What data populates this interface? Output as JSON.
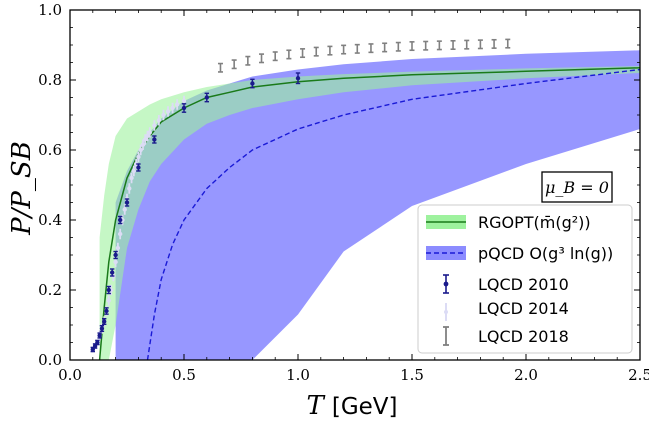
{
  "chart_data": {
    "type": "line",
    "xlabel_var": "T",
    "xlabel_unit": "[GeV]",
    "ylabel": "P/P_SB",
    "xlim": [
      0.0,
      2.5
    ],
    "ylim": [
      0.0,
      1.0
    ],
    "xticks": [
      0.0,
      0.5,
      1.0,
      1.5,
      2.0,
      2.5
    ],
    "xtick_labels": [
      "0.0",
      "0.5",
      "1.0",
      "1.5",
      "2.0",
      "2.5"
    ],
    "yticks": [
      0.0,
      0.2,
      0.4,
      0.6,
      0.8,
      1.0
    ],
    "ytick_labels": [
      "0.0",
      "0.2",
      "0.4",
      "0.6",
      "0.8",
      "1.0"
    ],
    "grid": false,
    "legend_position": "lower-right",
    "annotation": "μ_B = 0",
    "colors": {
      "rgopt_band": "#9ef29e",
      "rgopt_line": "#1a7a1a",
      "pqcd_band": "#8c8cff",
      "pqcd_line": "#1a1ad6",
      "lqcd2010": "#1a1a8c",
      "lqcd2014": "#dcdcf5",
      "lqcd2018": "#808080"
    },
    "series": [
      {
        "name": "RGOPT(m̄(g²))",
        "kind": "line_band",
        "x": [
          0.13,
          0.15,
          0.17,
          0.2,
          0.25,
          0.3,
          0.35,
          0.4,
          0.5,
          0.6,
          0.7,
          0.8,
          1.0,
          1.2,
          1.5,
          2.0,
          2.5
        ],
        "y": [
          0.0,
          0.15,
          0.28,
          0.4,
          0.52,
          0.59,
          0.64,
          0.68,
          0.72,
          0.75,
          0.765,
          0.78,
          0.795,
          0.805,
          0.815,
          0.825,
          0.835
        ],
        "band_upper": [
          0.35,
          0.47,
          0.56,
          0.64,
          0.69,
          0.71,
          0.73,
          0.745,
          0.765,
          0.78,
          0.79,
          0.8,
          0.81,
          0.817,
          0.824,
          0.833,
          0.84
        ],
        "band_lower": [
          0.0,
          0.0,
          0.0,
          0.1,
          0.32,
          0.43,
          0.51,
          0.56,
          0.63,
          0.675,
          0.7,
          0.72,
          0.745,
          0.765,
          0.785,
          0.805,
          0.82
        ]
      },
      {
        "name": "pQCD O(g³ ln(g))",
        "kind": "line_band",
        "x": [
          0.34,
          0.37,
          0.4,
          0.45,
          0.5,
          0.6,
          0.7,
          0.8,
          1.0,
          1.2,
          1.5,
          2.0,
          2.5
        ],
        "y": [
          0.0,
          0.13,
          0.23,
          0.33,
          0.4,
          0.49,
          0.55,
          0.6,
          0.66,
          0.7,
          0.745,
          0.79,
          0.83
        ],
        "band_x": [
          0.2,
          0.25,
          0.3,
          0.35,
          0.4,
          0.5,
          0.6,
          0.7,
          0.8,
          1.0,
          1.2,
          1.5,
          2.0,
          2.5
        ],
        "band_upper": [
          0.45,
          0.54,
          0.6,
          0.65,
          0.69,
          0.74,
          0.77,
          0.79,
          0.81,
          0.83,
          0.845,
          0.86,
          0.875,
          0.885
        ],
        "band_lower": [
          0.0,
          0.0,
          0.0,
          0.0,
          0.0,
          0.0,
          0.0,
          0.0,
          0.0,
          0.13,
          0.31,
          0.44,
          0.56,
          0.66
        ]
      },
      {
        "name": "LQCD 2010",
        "kind": "errorbar",
        "x": [
          0.1,
          0.11,
          0.12,
          0.13,
          0.14,
          0.15,
          0.16,
          0.17,
          0.185,
          0.2,
          0.22,
          0.25,
          0.3,
          0.37,
          0.5,
          0.6,
          0.8,
          1.0
        ],
        "y": [
          0.03,
          0.04,
          0.05,
          0.07,
          0.09,
          0.11,
          0.14,
          0.2,
          0.25,
          0.3,
          0.4,
          0.45,
          0.55,
          0.63,
          0.72,
          0.75,
          0.79,
          0.805
        ],
        "err": [
          0.006,
          0.006,
          0.006,
          0.007,
          0.008,
          0.008,
          0.009,
          0.01,
          0.01,
          0.01,
          0.01,
          0.01,
          0.01,
          0.01,
          0.012,
          0.012,
          0.012,
          0.015
        ]
      },
      {
        "name": "LQCD 2014",
        "kind": "errorbar",
        "x": [
          0.13,
          0.14,
          0.15,
          0.16,
          0.17,
          0.18,
          0.19,
          0.2,
          0.21,
          0.22,
          0.23,
          0.24,
          0.25,
          0.26,
          0.27,
          0.28,
          0.29,
          0.3,
          0.31,
          0.32,
          0.33,
          0.34,
          0.35,
          0.37,
          0.39,
          0.41,
          0.43,
          0.45,
          0.47,
          0.5
        ],
        "y": [
          0.07,
          0.09,
          0.11,
          0.14,
          0.17,
          0.2,
          0.24,
          0.28,
          0.32,
          0.36,
          0.4,
          0.43,
          0.46,
          0.49,
          0.52,
          0.54,
          0.56,
          0.58,
          0.6,
          0.615,
          0.63,
          0.64,
          0.65,
          0.67,
          0.685,
          0.7,
          0.71,
          0.72,
          0.73,
          0.74
        ],
        "err": [
          0.015,
          0.015,
          0.015,
          0.015,
          0.015,
          0.015,
          0.015,
          0.015,
          0.015,
          0.015,
          0.015,
          0.015,
          0.015,
          0.015,
          0.015,
          0.015,
          0.015,
          0.015,
          0.015,
          0.015,
          0.015,
          0.015,
          0.015,
          0.015,
          0.015,
          0.015,
          0.015,
          0.015,
          0.015,
          0.015
        ]
      },
      {
        "name": "LQCD 2018",
        "kind": "errorbar",
        "x": [
          0.66,
          0.72,
          0.78,
          0.84,
          0.9,
          0.96,
          1.02,
          1.08,
          1.14,
          1.2,
          1.26,
          1.32,
          1.38,
          1.44,
          1.5,
          1.56,
          1.62,
          1.68,
          1.74,
          1.8,
          1.86,
          1.92
        ],
        "y": [
          0.835,
          0.845,
          0.855,
          0.862,
          0.868,
          0.873,
          0.877,
          0.881,
          0.884,
          0.887,
          0.889,
          0.891,
          0.893,
          0.895,
          0.897,
          0.898,
          0.899,
          0.9,
          0.901,
          0.902,
          0.903,
          0.904
        ],
        "err": [
          0.012,
          0.012,
          0.012,
          0.012,
          0.012,
          0.012,
          0.012,
          0.012,
          0.012,
          0.012,
          0.012,
          0.012,
          0.012,
          0.012,
          0.012,
          0.012,
          0.012,
          0.012,
          0.012,
          0.012,
          0.012,
          0.012
        ]
      }
    ]
  }
}
